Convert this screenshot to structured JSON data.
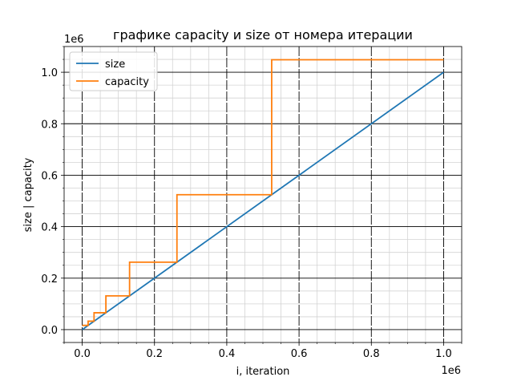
{
  "chart_data": {
    "type": "line",
    "title": "графике capacity и size от номера итерации",
    "xlabel": "i, iteration",
    "ylabel": "size | capacity",
    "x_offset_label": "1e6",
    "y_offset_label": "1e6",
    "xlim": [
      -0.05,
      1.05
    ],
    "ylim": [
      -0.05,
      1.1
    ],
    "x_major_ticks": [
      0.0,
      0.2,
      0.4,
      0.6,
      0.8,
      1.0
    ],
    "x_tick_labels": [
      "0.0",
      "0.2",
      "0.4",
      "0.6",
      "0.8",
      "1.0"
    ],
    "y_major_ticks": [
      0.0,
      0.2,
      0.4,
      0.6,
      0.8,
      1.0
    ],
    "y_tick_labels": [
      "0.0",
      "0.2",
      "0.4",
      "0.6",
      "0.8",
      "1.0"
    ],
    "minor_step": 0.05,
    "grid": true,
    "legend_position": "upper-left",
    "series": [
      {
        "name": "size",
        "color": "#1f77b4",
        "step": false,
        "x": [
          0,
          1.0
        ],
        "y": [
          0,
          1.0
        ]
      },
      {
        "name": "capacity",
        "color": "#ff7f0e",
        "step": true,
        "x": [
          0,
          0.016384,
          0.032768,
          0.065536,
          0.131072,
          0.262144,
          0.524288,
          1.0
        ],
        "y": [
          0.016384,
          0.032768,
          0.065536,
          0.131072,
          0.262144,
          0.524288,
          1.048576,
          1.048576
        ]
      }
    ]
  }
}
